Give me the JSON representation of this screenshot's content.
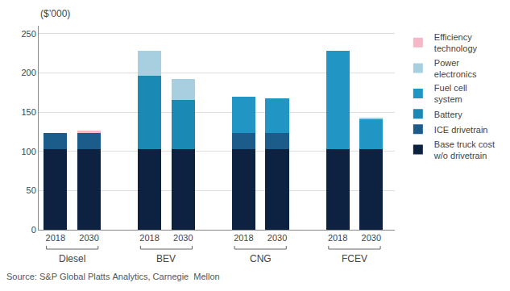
{
  "chart_data": {
    "type": "bar",
    "stacked": true,
    "categories": [
      "2018",
      "2030",
      "2018",
      "2030",
      "2018",
      "2030",
      "2018",
      "2030"
    ],
    "groups": [
      "Diesel",
      "BEV",
      "CNG",
      "FCEV"
    ],
    "ylabel": "($’000)",
    "source": "Source: S&P Global Platts Analytics, Carnegie  Mellon",
    "series": [
      {
        "name": "Base truck cost\nw/o drivetrain",
        "color": "#0d2240",
        "values": [
          103,
          103,
          103,
          103,
          103,
          103,
          103,
          103
        ]
      },
      {
        "name": "ICE drivetrain",
        "color": "#1b5c8a",
        "values": [
          20,
          20,
          0,
          0,
          20,
          20,
          0,
          0
        ]
      },
      {
        "name": "Battery",
        "color": "#1a8ab5",
        "values": [
          0,
          0,
          93,
          62,
          0,
          0,
          0,
          0
        ]
      },
      {
        "name": "Fuel cell\nsystem",
        "color": "#2196c4",
        "values": [
          0,
          0,
          0,
          0,
          47,
          45,
          125,
          38
        ]
      },
      {
        "name": "Power\nelectronics",
        "color": "#a8cfe0",
        "values": [
          0,
          0,
          32,
          27,
          0,
          0,
          0,
          2
        ]
      },
      {
        "name": "Efficiency\ntechnology",
        "color": "#f4b8c8",
        "values": [
          0,
          3,
          0,
          0,
          0,
          0,
          0,
          0
        ]
      }
    ],
    "ylim": [
      0,
      260
    ],
    "yticks": [
      0,
      50,
      100,
      150,
      200,
      250
    ],
    "grid": true,
    "legend": "right"
  }
}
